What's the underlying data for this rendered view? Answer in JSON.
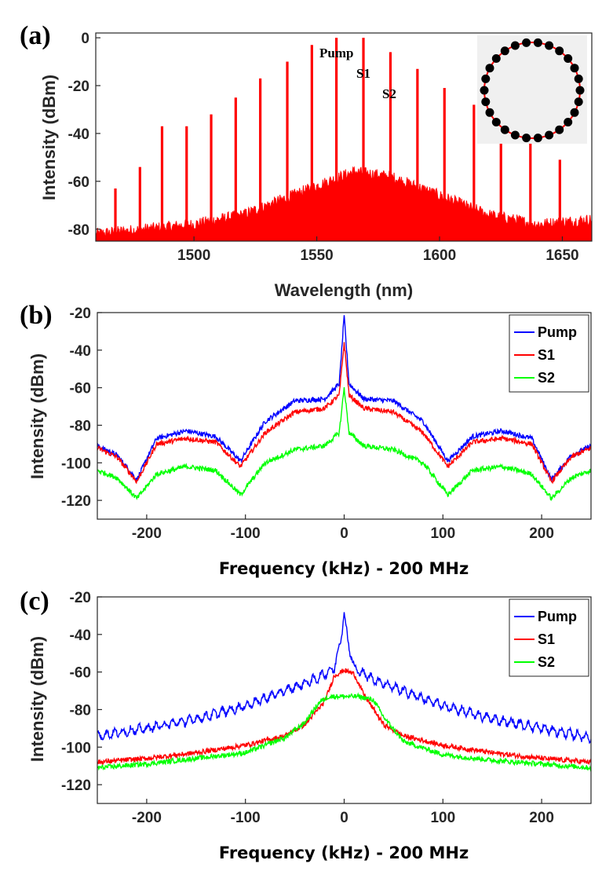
{
  "chart_data": [
    {
      "panel": "(a)",
      "type": "line",
      "title": "",
      "xlabel": "Wavelength (nm)",
      "ylabel": "Intensity (dBm)",
      "xlim": [
        1460,
        1662
      ],
      "ylim": [
        -85,
        2
      ],
      "xticks": [
        1500,
        1550,
        1600,
        1650
      ],
      "yticks": [
        0,
        -20,
        -40,
        -60,
        -80
      ],
      "color": "#ff0000",
      "comb_lines": {
        "wavelength": [
          1468,
          1478,
          1487,
          1497,
          1507,
          1517,
          1527,
          1538,
          1548,
          1558,
          1569,
          1580,
          1591,
          1602,
          1614,
          1625,
          1637,
          1649
        ],
        "intensity": [
          -63,
          -54,
          -37,
          -37,
          -32,
          -25,
          -17,
          -10,
          -3,
          0,
          0,
          -6,
          -13,
          -21,
          -28,
          -41,
          -41,
          -51
        ]
      },
      "background_noise": {
        "wavelength": [
          1460,
          1480,
          1500,
          1520,
          1540,
          1555,
          1565,
          1580,
          1600,
          1620,
          1640,
          1662
        ],
        "intensity": [
          -82,
          -80,
          -78,
          -74,
          -66,
          -60,
          -56,
          -58,
          -66,
          -74,
          -78,
          -76
        ]
      },
      "annotations": [
        "Pump",
        "S1",
        "S2"
      ],
      "inset": "ring-resonator-diagram"
    },
    {
      "panel": "(b)",
      "type": "line",
      "xlabel": "Frequency (kHz) - 200 MHz",
      "ylabel": "Intensity (dBm)",
      "xlim": [
        -250,
        250
      ],
      "ylim": [
        -130,
        -20
      ],
      "xticks": [
        -200,
        -100,
        0,
        100,
        200
      ],
      "yticks": [
        -20,
        -40,
        -60,
        -80,
        -100,
        -120
      ],
      "legend": "top-right",
      "series": [
        {
          "name": "Pump",
          "color": "#0000ff",
          "x": [
            -250,
            -230,
            -210,
            -190,
            -160,
            -130,
            -105,
            -80,
            -50,
            -20,
            -5,
            0,
            5,
            20,
            50,
            80,
            105,
            130,
            160,
            190,
            210,
            230,
            250
          ],
          "y": [
            -91,
            -96,
            -109,
            -87,
            -83,
            -86,
            -99,
            -78,
            -67,
            -66,
            -58,
            -22,
            -58,
            -66,
            -67,
            -78,
            -99,
            -86,
            -83,
            -87,
            -109,
            -96,
            -91
          ]
        },
        {
          "name": "S1",
          "color": "#ff0000",
          "x": [
            -250,
            -230,
            -210,
            -190,
            -160,
            -130,
            -105,
            -80,
            -50,
            -20,
            -5,
            0,
            5,
            20,
            50,
            80,
            105,
            130,
            160,
            190,
            210,
            230,
            250
          ],
          "y": [
            -92,
            -97,
            -110,
            -90,
            -87,
            -89,
            -102,
            -84,
            -73,
            -71,
            -64,
            -36,
            -64,
            -71,
            -73,
            -84,
            -102,
            -89,
            -87,
            -90,
            -110,
            -97,
            -92
          ]
        },
        {
          "name": "S2",
          "color": "#00ff00",
          "x": [
            -250,
            -230,
            -210,
            -190,
            -160,
            -130,
            -105,
            -80,
            -50,
            -20,
            -5,
            0,
            5,
            20,
            50,
            80,
            105,
            130,
            160,
            190,
            210,
            230,
            250
          ],
          "y": [
            -104,
            -108,
            -119,
            -106,
            -102,
            -104,
            -117,
            -100,
            -93,
            -91,
            -84,
            -60,
            -84,
            -91,
            -93,
            -100,
            -117,
            -104,
            -102,
            -106,
            -119,
            -108,
            -104
          ]
        }
      ]
    },
    {
      "panel": "(c)",
      "type": "line",
      "xlabel": "Frequency (kHz) - 200 MHz",
      "ylabel": "Intensity (dBm)",
      "xlim": [
        -250,
        250
      ],
      "ylim": [
        -130,
        -20
      ],
      "xticks": [
        -200,
        -100,
        0,
        100,
        200
      ],
      "yticks": [
        -20,
        -40,
        -60,
        -80,
        -100,
        -120
      ],
      "legend": "top-right",
      "series": [
        {
          "name": "Pump",
          "color": "#0000ff",
          "x": [
            -250,
            -200,
            -150,
            -100,
            -60,
            -30,
            -10,
            -4,
            0,
            4,
            10,
            30,
            60,
            100,
            150,
            200,
            250
          ],
          "y": [
            -94,
            -90,
            -85,
            -78,
            -70,
            -64,
            -58,
            -44,
            -29,
            -44,
            -58,
            -64,
            -70,
            -78,
            -85,
            -90,
            -95
          ],
          "ripple": 2
        },
        {
          "name": "S1",
          "color": "#ff0000",
          "x": [
            -250,
            -200,
            -150,
            -100,
            -60,
            -40,
            -20,
            -10,
            0,
            10,
            20,
            40,
            60,
            100,
            150,
            200,
            250
          ],
          "y": [
            -108,
            -106,
            -103,
            -99,
            -94,
            -88,
            -76,
            -62,
            -59,
            -61,
            -72,
            -88,
            -94,
            -99,
            -103,
            -106,
            -108
          ]
        },
        {
          "name": "S2",
          "color": "#00ff00",
          "x": [
            -250,
            -200,
            -150,
            -100,
            -60,
            -40,
            -25,
            -15,
            0,
            15,
            30,
            40,
            60,
            100,
            150,
            200,
            250
          ],
          "y": [
            -111,
            -109,
            -106,
            -103,
            -95,
            -87,
            -76,
            -73,
            -73,
            -73,
            -75,
            -84,
            -97,
            -104,
            -107,
            -109,
            -111
          ]
        }
      ]
    }
  ]
}
